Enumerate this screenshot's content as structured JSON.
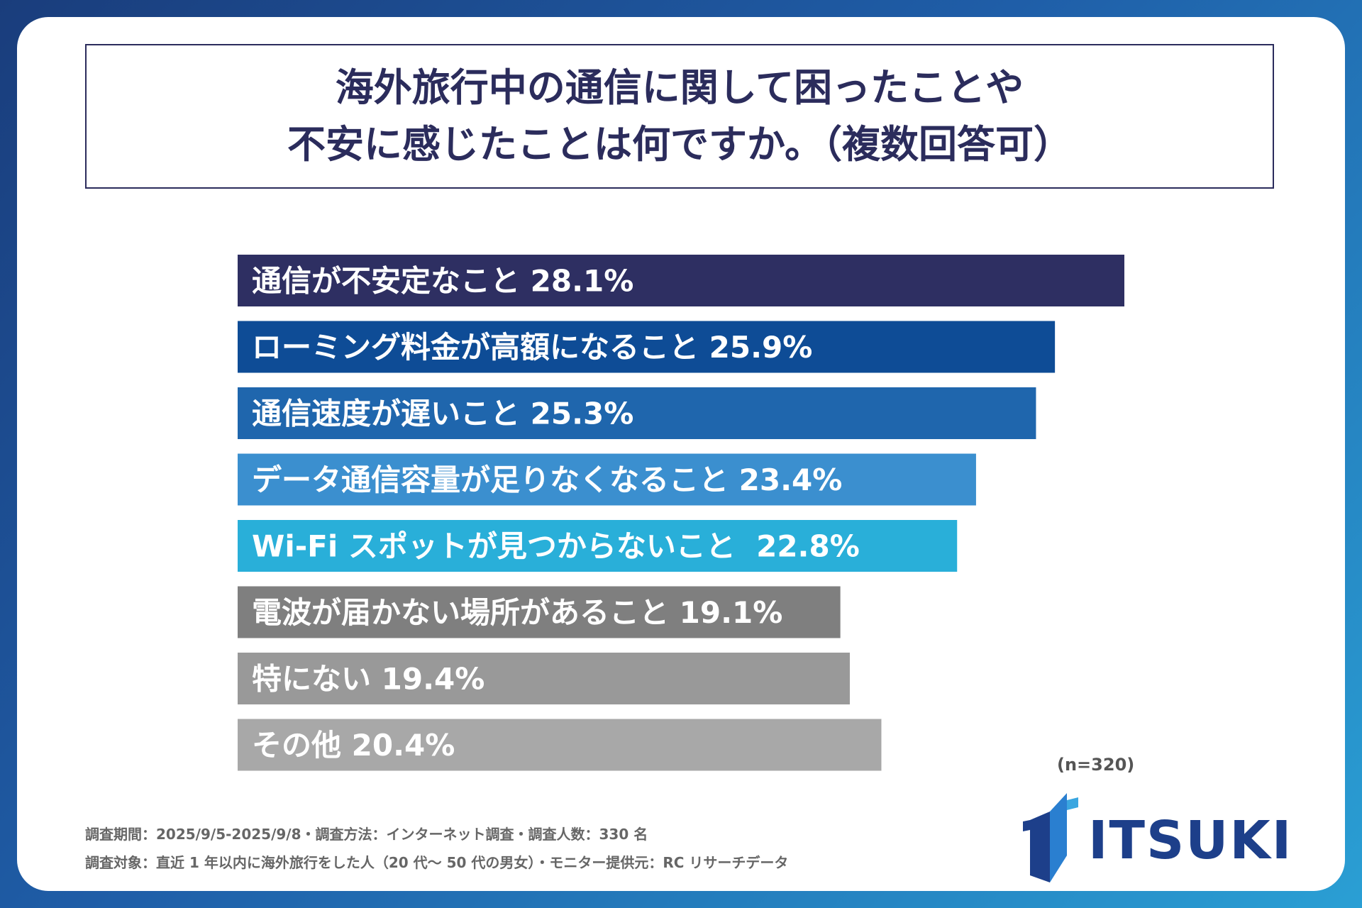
{
  "title": {
    "line1": "海外旅行中の通信に関して困ったことや",
    "line2": "不安に感じたことは何ですか。（複数回答可）"
  },
  "chart_data": {
    "type": "bar",
    "orientation": "horizontal",
    "categories": [
      "通信が不安定なこと",
      "ローミング料金が高額になること",
      "通信速度が遅いこと",
      "データ通信容量が足りなくなること",
      "Wi-Fi スポットが見つからないこと",
      "電波が届かない場所があること",
      "特にない",
      "その他"
    ],
    "values": [
      28.1,
      25.9,
      25.3,
      23.4,
      22.8,
      19.1,
      19.4,
      20.4
    ],
    "labels": [
      "通信が不安定なこと 28.1%",
      "ローミング料金が高額になること 25.9%",
      "通信速度が遅いこと 25.3%",
      "データ通信容量が足りなくなること 23.4%",
      "Wi-Fi スポットが見つからないこと  22.8%",
      "電波が届かない場所があること 19.1%",
      "特にない 19.4%",
      "その他 20.4%"
    ],
    "colors": [
      "#2e2f62",
      "#0e4c96",
      "#1f66ad",
      "#3b8fcf",
      "#29afd9",
      "#7f7f7f",
      "#999999",
      "#a8a8a8"
    ],
    "unit": "%",
    "grid": false
  },
  "sample_note": "(n=320)",
  "footnotes": {
    "line1": "調査期間：2025/9/5-2025/9/8・調査方法：インターネット調査・調査人数：330 名",
    "line2": "調査対象：直近 1 年以内に海外旅行をした人（20 代〜 50 代の男女）・モニター提供元：RC リサーチデータ"
  },
  "logo": {
    "text": "ITSUKI",
    "color": "#1d3f8a"
  }
}
